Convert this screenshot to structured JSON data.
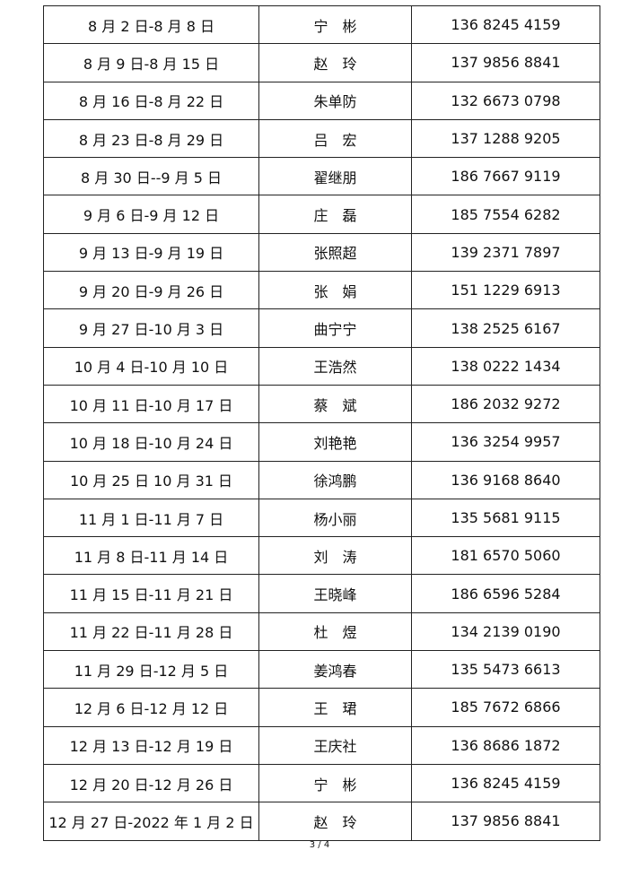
{
  "rows": [
    {
      "dates": "8 月 2 日-8 月 8 日",
      "name": "宁　彬",
      "phone": "136 8245 4159"
    },
    {
      "dates": "8 月 9 日-8 月 15 日",
      "name": "赵　玲",
      "phone": "137 9856 8841"
    },
    {
      "dates": "8 月 16 日-8 月 22 日",
      "name": "朱单防",
      "phone": "132 6673 0798"
    },
    {
      "dates": "8 月 23 日-8 月 29 日",
      "name": "吕　宏",
      "phone": "137 1288 9205"
    },
    {
      "dates": "8 月 30 日--9 月 5 日",
      "name": "翟继朋",
      "phone": "186 7667 9119"
    },
    {
      "dates": "9 月 6 日-9 月 12 日",
      "name": "庄　磊",
      "phone": "185 7554 6282"
    },
    {
      "dates": "9 月 13 日-9 月 19 日",
      "name": "张照超",
      "phone": "139 2371 7897"
    },
    {
      "dates": "9 月 20 日-9 月 26 日",
      "name": "张　娟",
      "phone": "151 1229 6913"
    },
    {
      "dates": "9 月 27 日-10 月 3 日",
      "name": "曲宁宁",
      "phone": "138 2525 6167"
    },
    {
      "dates": "10 月 4 日-10 月 10 日",
      "name": "王浩然",
      "phone": "138 0222 1434"
    },
    {
      "dates": "10 月 11 日-10 月 17 日",
      "name": "蔡　斌",
      "phone": "186 2032 9272"
    },
    {
      "dates": "10 月 18 日-10 月 24 日",
      "name": "刘艳艳",
      "phone": "136 3254 9957"
    },
    {
      "dates": "10 月 25 日 10 月 31 日",
      "name": "徐鸿鹏",
      "phone": "136 9168 8640"
    },
    {
      "dates": "11 月 1 日-11 月 7 日",
      "name": "杨小丽",
      "phone": "135 5681 9115"
    },
    {
      "dates": "11 月 8 日-11 月 14 日",
      "name": "刘　涛",
      "phone": "181 6570 5060"
    },
    {
      "dates": "11 月 15 日-11 月 21 日",
      "name": "王晓峰",
      "phone": "186 6596 5284"
    },
    {
      "dates": "11 月 22 日-11 月 28 日",
      "name": "杜　煜",
      "phone": "134 2139 0190"
    },
    {
      "dates": "11 月 29 日-12 月 5 日",
      "name": "姜鸿春",
      "phone": "135 5473 6613"
    },
    {
      "dates": "12 月 6 日-12 月 12 日",
      "name": "王　珺",
      "phone": "185 7672 6866"
    },
    {
      "dates": "12 月 13 日-12 月 19 日",
      "name": "王庆社",
      "phone": "136 8686 1872"
    },
    {
      "dates": "12 月 20 日-12 月 26 日",
      "name": "宁　彬",
      "phone": "136 8245 4159"
    },
    {
      "dates": "12 月 27 日-2022 年 1 月 2 日",
      "name": "赵　玲",
      "phone": "137 9856 8841"
    }
  ],
  "page_number": "3 / 4"
}
